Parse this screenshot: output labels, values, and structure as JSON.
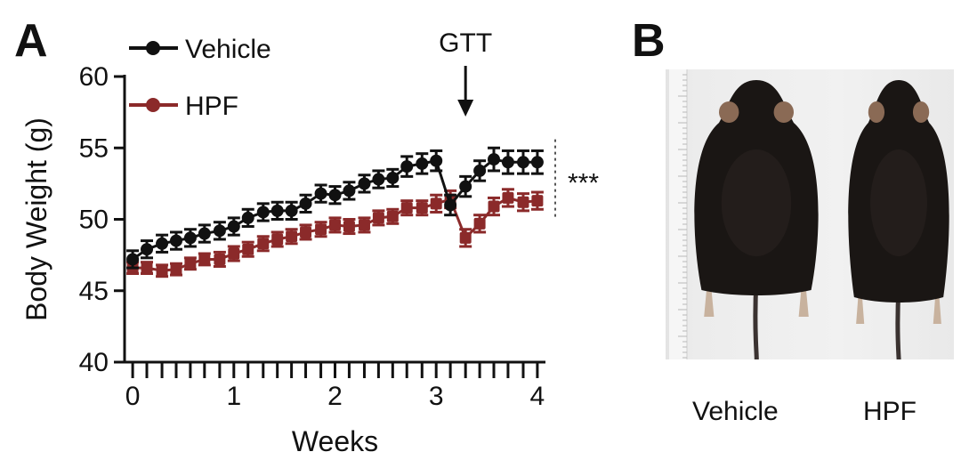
{
  "panels": {
    "a_letter": "A",
    "b_letter": "B"
  },
  "photo": {
    "labels": [
      "Vehicle",
      "HPF"
    ],
    "colors": {
      "fur": "#1a1614",
      "ear": "#8a6a55",
      "tail": "#3a3230",
      "paw": "#c8b29e"
    }
  },
  "chart_data": {
    "type": "line",
    "title": "",
    "xlabel": "Weeks",
    "ylabel": "Body Weight (g)",
    "xlim": [
      -0.08,
      4.08
    ],
    "ylim": [
      40,
      60
    ],
    "xticks": [
      0,
      1,
      2,
      3,
      4
    ],
    "yticks": [
      40,
      45,
      50,
      55,
      60
    ],
    "legend": "top-left",
    "grid": false,
    "annotations": [
      {
        "text": "GTT",
        "x": 3.29,
        "type": "arrow-down"
      },
      {
        "text": "***",
        "y_range": [
          50,
          55.6
        ],
        "type": "significance-bracket"
      }
    ],
    "x": [
      0,
      0.14,
      0.29,
      0.43,
      0.57,
      0.71,
      0.86,
      1.0,
      1.14,
      1.29,
      1.43,
      1.57,
      1.71,
      1.86,
      2.0,
      2.14,
      2.29,
      2.43,
      2.57,
      2.71,
      2.86,
      3.0,
      3.14,
      3.29,
      3.43,
      3.57,
      3.71,
      3.86,
      4.0
    ],
    "series": [
      {
        "name": "Vehicle",
        "color": "#111111",
        "values": [
          47.2,
          47.9,
          48.3,
          48.5,
          48.7,
          49.0,
          49.2,
          49.5,
          50.1,
          50.5,
          50.6,
          50.6,
          51.1,
          51.8,
          51.7,
          52.0,
          52.5,
          52.8,
          52.9,
          53.7,
          53.9,
          54.1,
          51.0,
          52.3,
          53.4,
          54.2,
          54.0,
          54.0,
          54.0
        ],
        "errors": [
          0.6,
          0.6,
          0.6,
          0.6,
          0.6,
          0.6,
          0.6,
          0.6,
          0.6,
          0.6,
          0.6,
          0.6,
          0.6,
          0.6,
          0.6,
          0.6,
          0.6,
          0.6,
          0.6,
          0.7,
          0.7,
          0.7,
          0.7,
          0.7,
          0.7,
          0.8,
          0.8,
          0.8,
          0.8
        ]
      },
      {
        "name": "HPF",
        "color": "#8b2a2a",
        "values": [
          46.6,
          46.6,
          46.4,
          46.5,
          46.9,
          47.2,
          47.2,
          47.6,
          47.9,
          48.3,
          48.6,
          48.8,
          49.1,
          49.3,
          49.6,
          49.5,
          49.6,
          50.1,
          50.2,
          50.8,
          50.8,
          51.1,
          51.4,
          48.7,
          49.7,
          50.9,
          51.5,
          51.2,
          51.3
        ],
        "errors": [
          0.4,
          0.4,
          0.4,
          0.4,
          0.4,
          0.4,
          0.5,
          0.5,
          0.5,
          0.5,
          0.5,
          0.5,
          0.5,
          0.5,
          0.5,
          0.5,
          0.5,
          0.5,
          0.5,
          0.5,
          0.5,
          0.6,
          0.6,
          0.6,
          0.6,
          0.6,
          0.6,
          0.6,
          0.6
        ]
      }
    ]
  }
}
